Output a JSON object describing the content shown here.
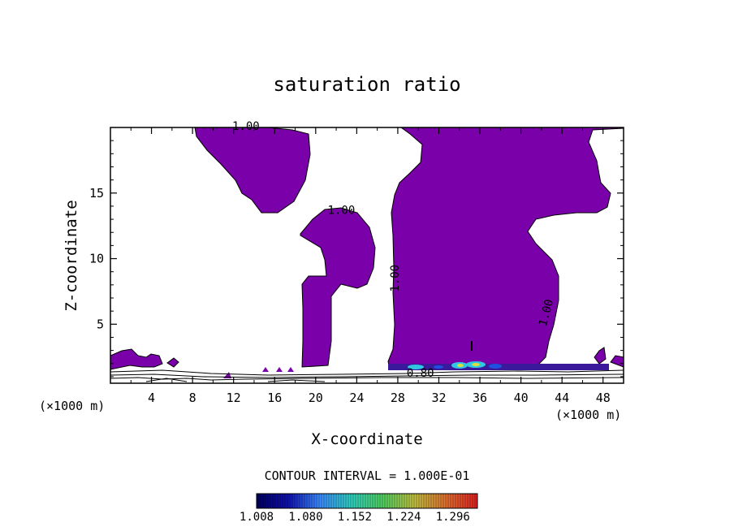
{
  "chart_data": {
    "type": "contour",
    "title": "saturation ratio",
    "xlabel": "X-coordinate",
    "ylabel": "Z-coordinate",
    "x_unit": "(×1000 m)",
    "xlim": [
      0,
      50
    ],
    "ylim": [
      0.5,
      20
    ],
    "x_ticks": [
      4,
      8,
      12,
      16,
      20,
      24,
      28,
      32,
      36,
      40,
      44,
      48
    ],
    "y_ticks": [
      5,
      10,
      15
    ],
    "contour_interval_label": "CONTOUR INTERVAL = 1.000E-01",
    "contour_labels": [
      "1.00",
      "1.00",
      "1.00",
      "1.00",
      "0.80"
    ],
    "filled_threshold": 1.0,
    "fill_color": "#7a00aa",
    "colorbar": {
      "ticks": [
        "1.008",
        "1.080",
        "1.152",
        "1.224",
        "1.296"
      ],
      "min": 1.008,
      "max": 1.332,
      "colors": [
        "#000060",
        "#1010b0",
        "#3a8aff",
        "#30d0c0",
        "#50d060",
        "#c0c040",
        "#e07030",
        "#e02020"
      ]
    },
    "supersaturated_regions": [
      {
        "x": [
          10,
          19
        ],
        "z": [
          13.2,
          20
        ],
        "value": 1.0
      },
      {
        "x": [
          18.5,
          23.5
        ],
        "z": [
          1.2,
          13.5
        ],
        "value": 1.0
      },
      {
        "x": [
          27,
          49
        ],
        "z": [
          1.2,
          20
        ],
        "value": 1.0
      },
      {
        "x": [
          0,
          5
        ],
        "z": [
          0.9,
          2.5
        ],
        "value": 1.0
      }
    ]
  }
}
